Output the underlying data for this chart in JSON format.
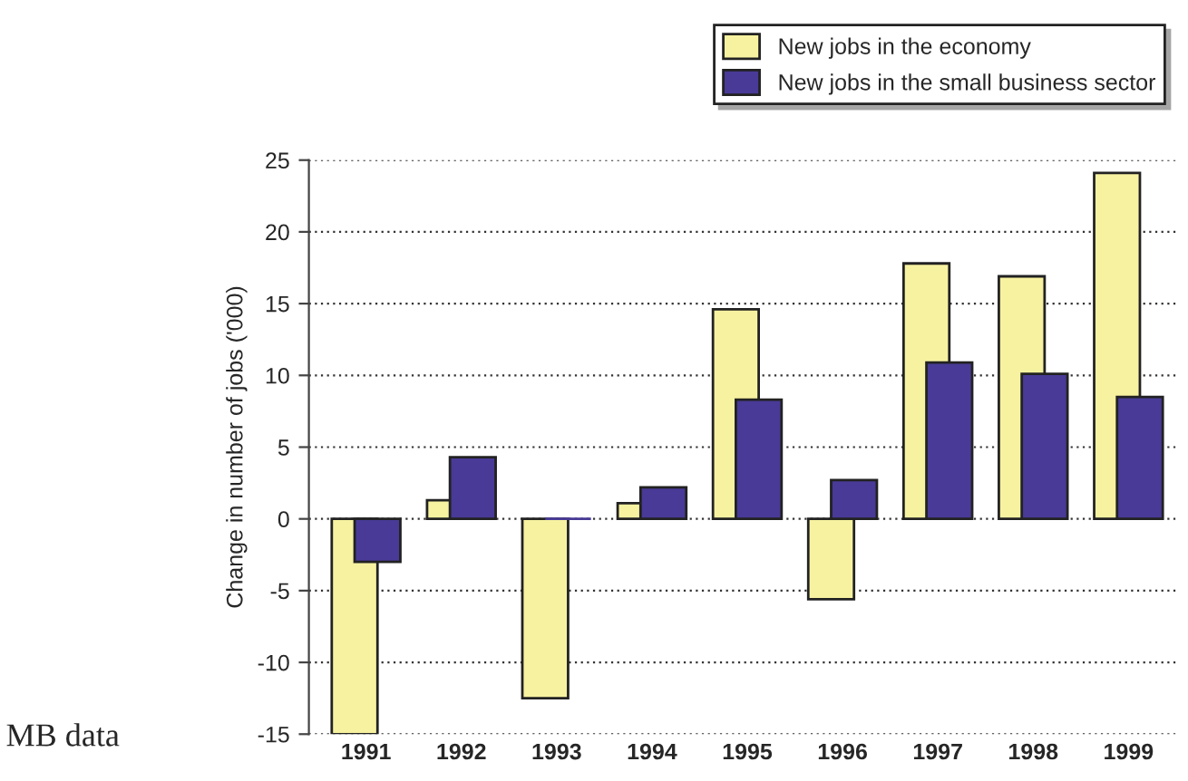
{
  "chart_data": {
    "type": "bar",
    "ylabel": "Change in number of jobs ('000)",
    "categories": [
      "1991",
      "1992",
      "1993",
      "1994",
      "1995",
      "1996",
      "1997",
      "1998",
      "1999"
    ],
    "series": [
      {
        "name": "New jobs in the economy",
        "color": "#f7f2a0",
        "values": [
          -15,
          1.3,
          -12.5,
          1.1,
          14.6,
          -5.6,
          17.8,
          16.9,
          24.1
        ]
      },
      {
        "name": "New jobs in the small business sector",
        "color": "#483a96",
        "values": [
          -3.0,
          4.3,
          0,
          2.2,
          8.3,
          2.7,
          10.9,
          10.1,
          8.5
        ]
      }
    ],
    "ylim": [
      -15,
      25
    ],
    "yticks": [
      -15,
      -10,
      -5,
      0,
      5,
      10,
      15,
      20,
      25
    ],
    "grid": "y",
    "legend": "top right",
    "annotations": [
      "MB data"
    ]
  }
}
